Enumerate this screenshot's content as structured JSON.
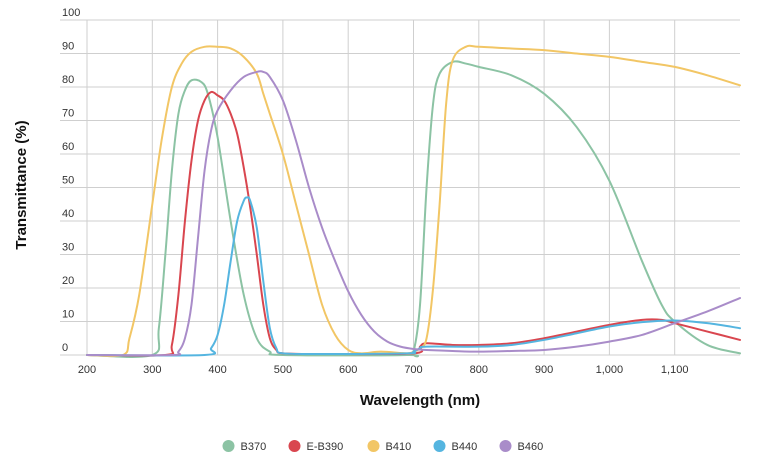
{
  "chart_data": {
    "type": "line",
    "title": "",
    "xlabel": "Wavelength (nm)",
    "ylabel": "Transmittance (%)",
    "xlim": [
      200,
      1200
    ],
    "ylim": [
      0,
      100
    ],
    "x_ticks": [
      {
        "value": 200,
        "label": "200"
      },
      {
        "value": 300,
        "label": "300"
      },
      {
        "value": 400,
        "label": "400"
      },
      {
        "value": 500,
        "label": "500"
      },
      {
        "value": 600,
        "label": "600"
      },
      {
        "value": 700,
        "label": "700"
      },
      {
        "value": 800,
        "label": "800"
      },
      {
        "value": 900,
        "label": "900"
      },
      {
        "value": 1000,
        "label": "1,000"
      },
      {
        "value": 1100,
        "label": "1,100"
      }
    ],
    "y_ticks": [
      {
        "value": 0,
        "label": "0"
      },
      {
        "value": 10,
        "label": "10"
      },
      {
        "value": 20,
        "label": "20"
      },
      {
        "value": 30,
        "label": "30"
      },
      {
        "value": 40,
        "label": "40"
      },
      {
        "value": 50,
        "label": "50"
      },
      {
        "value": 60,
        "label": "60"
      },
      {
        "value": 70,
        "label": "70"
      },
      {
        "value": 80,
        "label": "80"
      },
      {
        "value": 90,
        "label": "90"
      },
      {
        "value": 100,
        "label": "100"
      }
    ],
    "grid": true,
    "legend_position": "bottom",
    "series": [
      {
        "name": "B370",
        "color": "#8cc3a4",
        "points": [
          [
            200,
            0
          ],
          [
            300,
            0
          ],
          [
            310,
            8
          ],
          [
            320,
            30
          ],
          [
            330,
            55
          ],
          [
            340,
            72
          ],
          [
            350,
            79
          ],
          [
            360,
            82
          ],
          [
            375,
            81.5
          ],
          [
            385,
            78
          ],
          [
            400,
            65
          ],
          [
            420,
            40
          ],
          [
            440,
            18
          ],
          [
            460,
            5
          ],
          [
            480,
            1
          ],
          [
            500,
            0
          ],
          [
            690,
            0
          ],
          [
            700,
            1
          ],
          [
            710,
            15
          ],
          [
            720,
            50
          ],
          [
            730,
            75
          ],
          [
            740,
            84
          ],
          [
            760,
            87.5
          ],
          [
            780,
            87
          ],
          [
            800,
            86
          ],
          [
            850,
            83.5
          ],
          [
            900,
            78
          ],
          [
            950,
            68
          ],
          [
            1000,
            52
          ],
          [
            1050,
            28
          ],
          [
            1080,
            15
          ],
          [
            1100,
            10
          ],
          [
            1150,
            3
          ],
          [
            1200,
            0.5
          ]
        ]
      },
      {
        "name": "E-B390",
        "color": "#d9464f",
        "points": [
          [
            200,
            0
          ],
          [
            320,
            0
          ],
          [
            330,
            3
          ],
          [
            340,
            18
          ],
          [
            350,
            40
          ],
          [
            360,
            58
          ],
          [
            370,
            70
          ],
          [
            380,
            76
          ],
          [
            390,
            78.5
          ],
          [
            400,
            77.5
          ],
          [
            410,
            76
          ],
          [
            420,
            72
          ],
          [
            430,
            66
          ],
          [
            440,
            56
          ],
          [
            450,
            44
          ],
          [
            460,
            30
          ],
          [
            470,
            15
          ],
          [
            480,
            5
          ],
          [
            490,
            1.5
          ],
          [
            500,
            0.5
          ],
          [
            560,
            0.3
          ],
          [
            700,
            0.5
          ],
          [
            710,
            2.5
          ],
          [
            720,
            3.5
          ],
          [
            760,
            3
          ],
          [
            800,
            3
          ],
          [
            850,
            3.5
          ],
          [
            900,
            5
          ],
          [
            950,
            7
          ],
          [
            1000,
            9
          ],
          [
            1050,
            10.5
          ],
          [
            1080,
            10.5
          ],
          [
            1100,
            9.5
          ],
          [
            1150,
            7
          ],
          [
            1200,
            4.5
          ]
        ]
      },
      {
        "name": "B410",
        "color": "#f2c665",
        "points": [
          [
            200,
            0
          ],
          [
            255,
            0
          ],
          [
            265,
            5
          ],
          [
            280,
            18
          ],
          [
            300,
            45
          ],
          [
            315,
            65
          ],
          [
            330,
            80
          ],
          [
            345,
            87
          ],
          [
            360,
            90.5
          ],
          [
            380,
            92
          ],
          [
            400,
            92
          ],
          [
            420,
            91.5
          ],
          [
            440,
            89
          ],
          [
            460,
            84
          ],
          [
            470,
            78
          ],
          [
            480,
            72
          ],
          [
            500,
            60
          ],
          [
            520,
            45
          ],
          [
            540,
            30
          ],
          [
            560,
            15
          ],
          [
            580,
            6
          ],
          [
            600,
            1.5
          ],
          [
            620,
            0.5
          ],
          [
            650,
            1
          ],
          [
            690,
            0.5
          ],
          [
            700,
            1
          ],
          [
            710,
            2
          ],
          [
            720,
            5
          ],
          [
            730,
            20
          ],
          [
            740,
            45
          ],
          [
            750,
            75
          ],
          [
            760,
            88
          ],
          [
            780,
            92
          ],
          [
            800,
            92
          ],
          [
            850,
            91.5
          ],
          [
            900,
            91
          ],
          [
            950,
            90
          ],
          [
            1000,
            89
          ],
          [
            1050,
            87.5
          ],
          [
            1100,
            86
          ],
          [
            1150,
            83.5
          ],
          [
            1200,
            80.5
          ]
        ]
      },
      {
        "name": "B440",
        "color": "#55b5e0",
        "points": [
          [
            200,
            0
          ],
          [
            380,
            0
          ],
          [
            390,
            2
          ],
          [
            400,
            6
          ],
          [
            410,
            15
          ],
          [
            420,
            28
          ],
          [
            430,
            40
          ],
          [
            440,
            46
          ],
          [
            445,
            47
          ],
          [
            450,
            46
          ],
          [
            460,
            38
          ],
          [
            470,
            22
          ],
          [
            480,
            8
          ],
          [
            490,
            2
          ],
          [
            500,
            0.5
          ],
          [
            560,
            0.3
          ],
          [
            690,
            0.5
          ],
          [
            700,
            1
          ],
          [
            710,
            2
          ],
          [
            720,
            2.5
          ],
          [
            800,
            2.5
          ],
          [
            850,
            3
          ],
          [
            900,
            4.5
          ],
          [
            950,
            6.5
          ],
          [
            1000,
            8.5
          ],
          [
            1050,
            9.8
          ],
          [
            1100,
            10.3
          ],
          [
            1150,
            9.5
          ],
          [
            1200,
            8
          ]
        ]
      },
      {
        "name": "B460",
        "color": "#a98cc9",
        "points": [
          [
            200,
            0
          ],
          [
            330,
            0
          ],
          [
            340,
            1
          ],
          [
            350,
            5
          ],
          [
            360,
            15
          ],
          [
            370,
            35
          ],
          [
            380,
            55
          ],
          [
            390,
            67
          ],
          [
            400,
            73
          ],
          [
            420,
            79
          ],
          [
            440,
            83
          ],
          [
            460,
            84.5
          ],
          [
            470,
            84.5
          ],
          [
            480,
            83
          ],
          [
            500,
            76
          ],
          [
            520,
            64
          ],
          [
            540,
            50
          ],
          [
            560,
            38
          ],
          [
            580,
            28
          ],
          [
            600,
            19
          ],
          [
            620,
            12
          ],
          [
            640,
            7
          ],
          [
            660,
            4
          ],
          [
            680,
            2.5
          ],
          [
            700,
            1.8
          ],
          [
            720,
            1.5
          ],
          [
            760,
            1.2
          ],
          [
            800,
            1
          ],
          [
            850,
            1.2
          ],
          [
            900,
            1.5
          ],
          [
            950,
            2.5
          ],
          [
            1000,
            4
          ],
          [
            1050,
            6
          ],
          [
            1100,
            9.5
          ],
          [
            1150,
            13
          ],
          [
            1200,
            17
          ]
        ]
      }
    ]
  }
}
